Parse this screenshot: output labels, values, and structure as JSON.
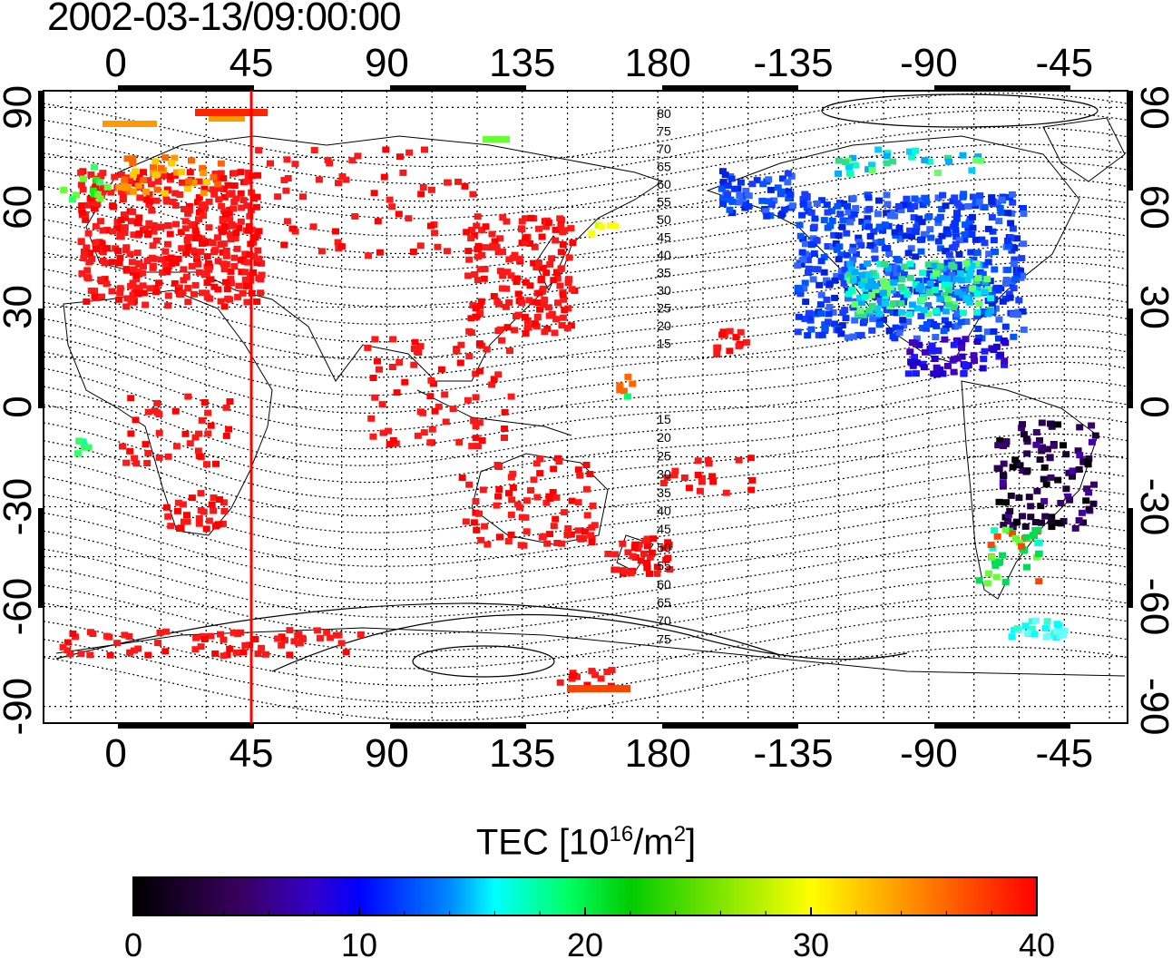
{
  "title": "2002-03-13/09:00:00",
  "map": {
    "top_lon_labels": [
      "0",
      "45",
      "90",
      "135",
      "180",
      "-135",
      "-90",
      "-45"
    ],
    "bottom_lon_labels": [
      "0",
      "45",
      "90",
      "135",
      "180",
      "-135",
      "-90",
      "-45"
    ],
    "left_lat_labels": [
      "90",
      "60",
      "30",
      "0",
      "-30",
      "-60",
      "-90"
    ],
    "right_lat_labels": [
      "90",
      "60",
      "30",
      "0",
      "-30",
      "-60",
      "-90"
    ],
    "lon_ticks": [
      0,
      45,
      90,
      135,
      180,
      225,
      270,
      315
    ],
    "lat_ticks": [
      90,
      60,
      30,
      0,
      -30,
      -60,
      -90
    ],
    "lon_range": [
      -24,
      336
    ],
    "lat_range": [
      -95,
      95
    ],
    "grid": "dotted every 15 degrees",
    "marker_meridian_lon": 45,
    "marker_meridian_color": "#ff0000",
    "contour_labels_north": [
      "80",
      "75",
      "70",
      "65",
      "60",
      "55",
      "50",
      "45",
      "40",
      "35",
      "30",
      "25",
      "20",
      "15"
    ],
    "contour_labels_south": [
      "15",
      "20",
      "25",
      "30",
      "35",
      "40",
      "45",
      "50",
      "55",
      "60",
      "65",
      "70",
      "75"
    ]
  },
  "colorbar": {
    "title_main": "TEC  [10",
    "title_sup1": "16",
    "title_mid": "/m",
    "title_sup2": "2",
    "title_end": "]",
    "min": 0,
    "max": 40,
    "tick_labels": [
      "0",
      "10",
      "20",
      "30",
      "40"
    ],
    "colormap": "jet-like (black-purple-blue-cyan-green-yellow-orange-red)",
    "stops": [
      "#000000",
      "#3a0060",
      "#3300cc",
      "#0000ff",
      "#0088ff",
      "#00ffff",
      "#00ff66",
      "#00cc00",
      "#ffff00",
      "#ff9900",
      "#ff0000"
    ]
  }
}
